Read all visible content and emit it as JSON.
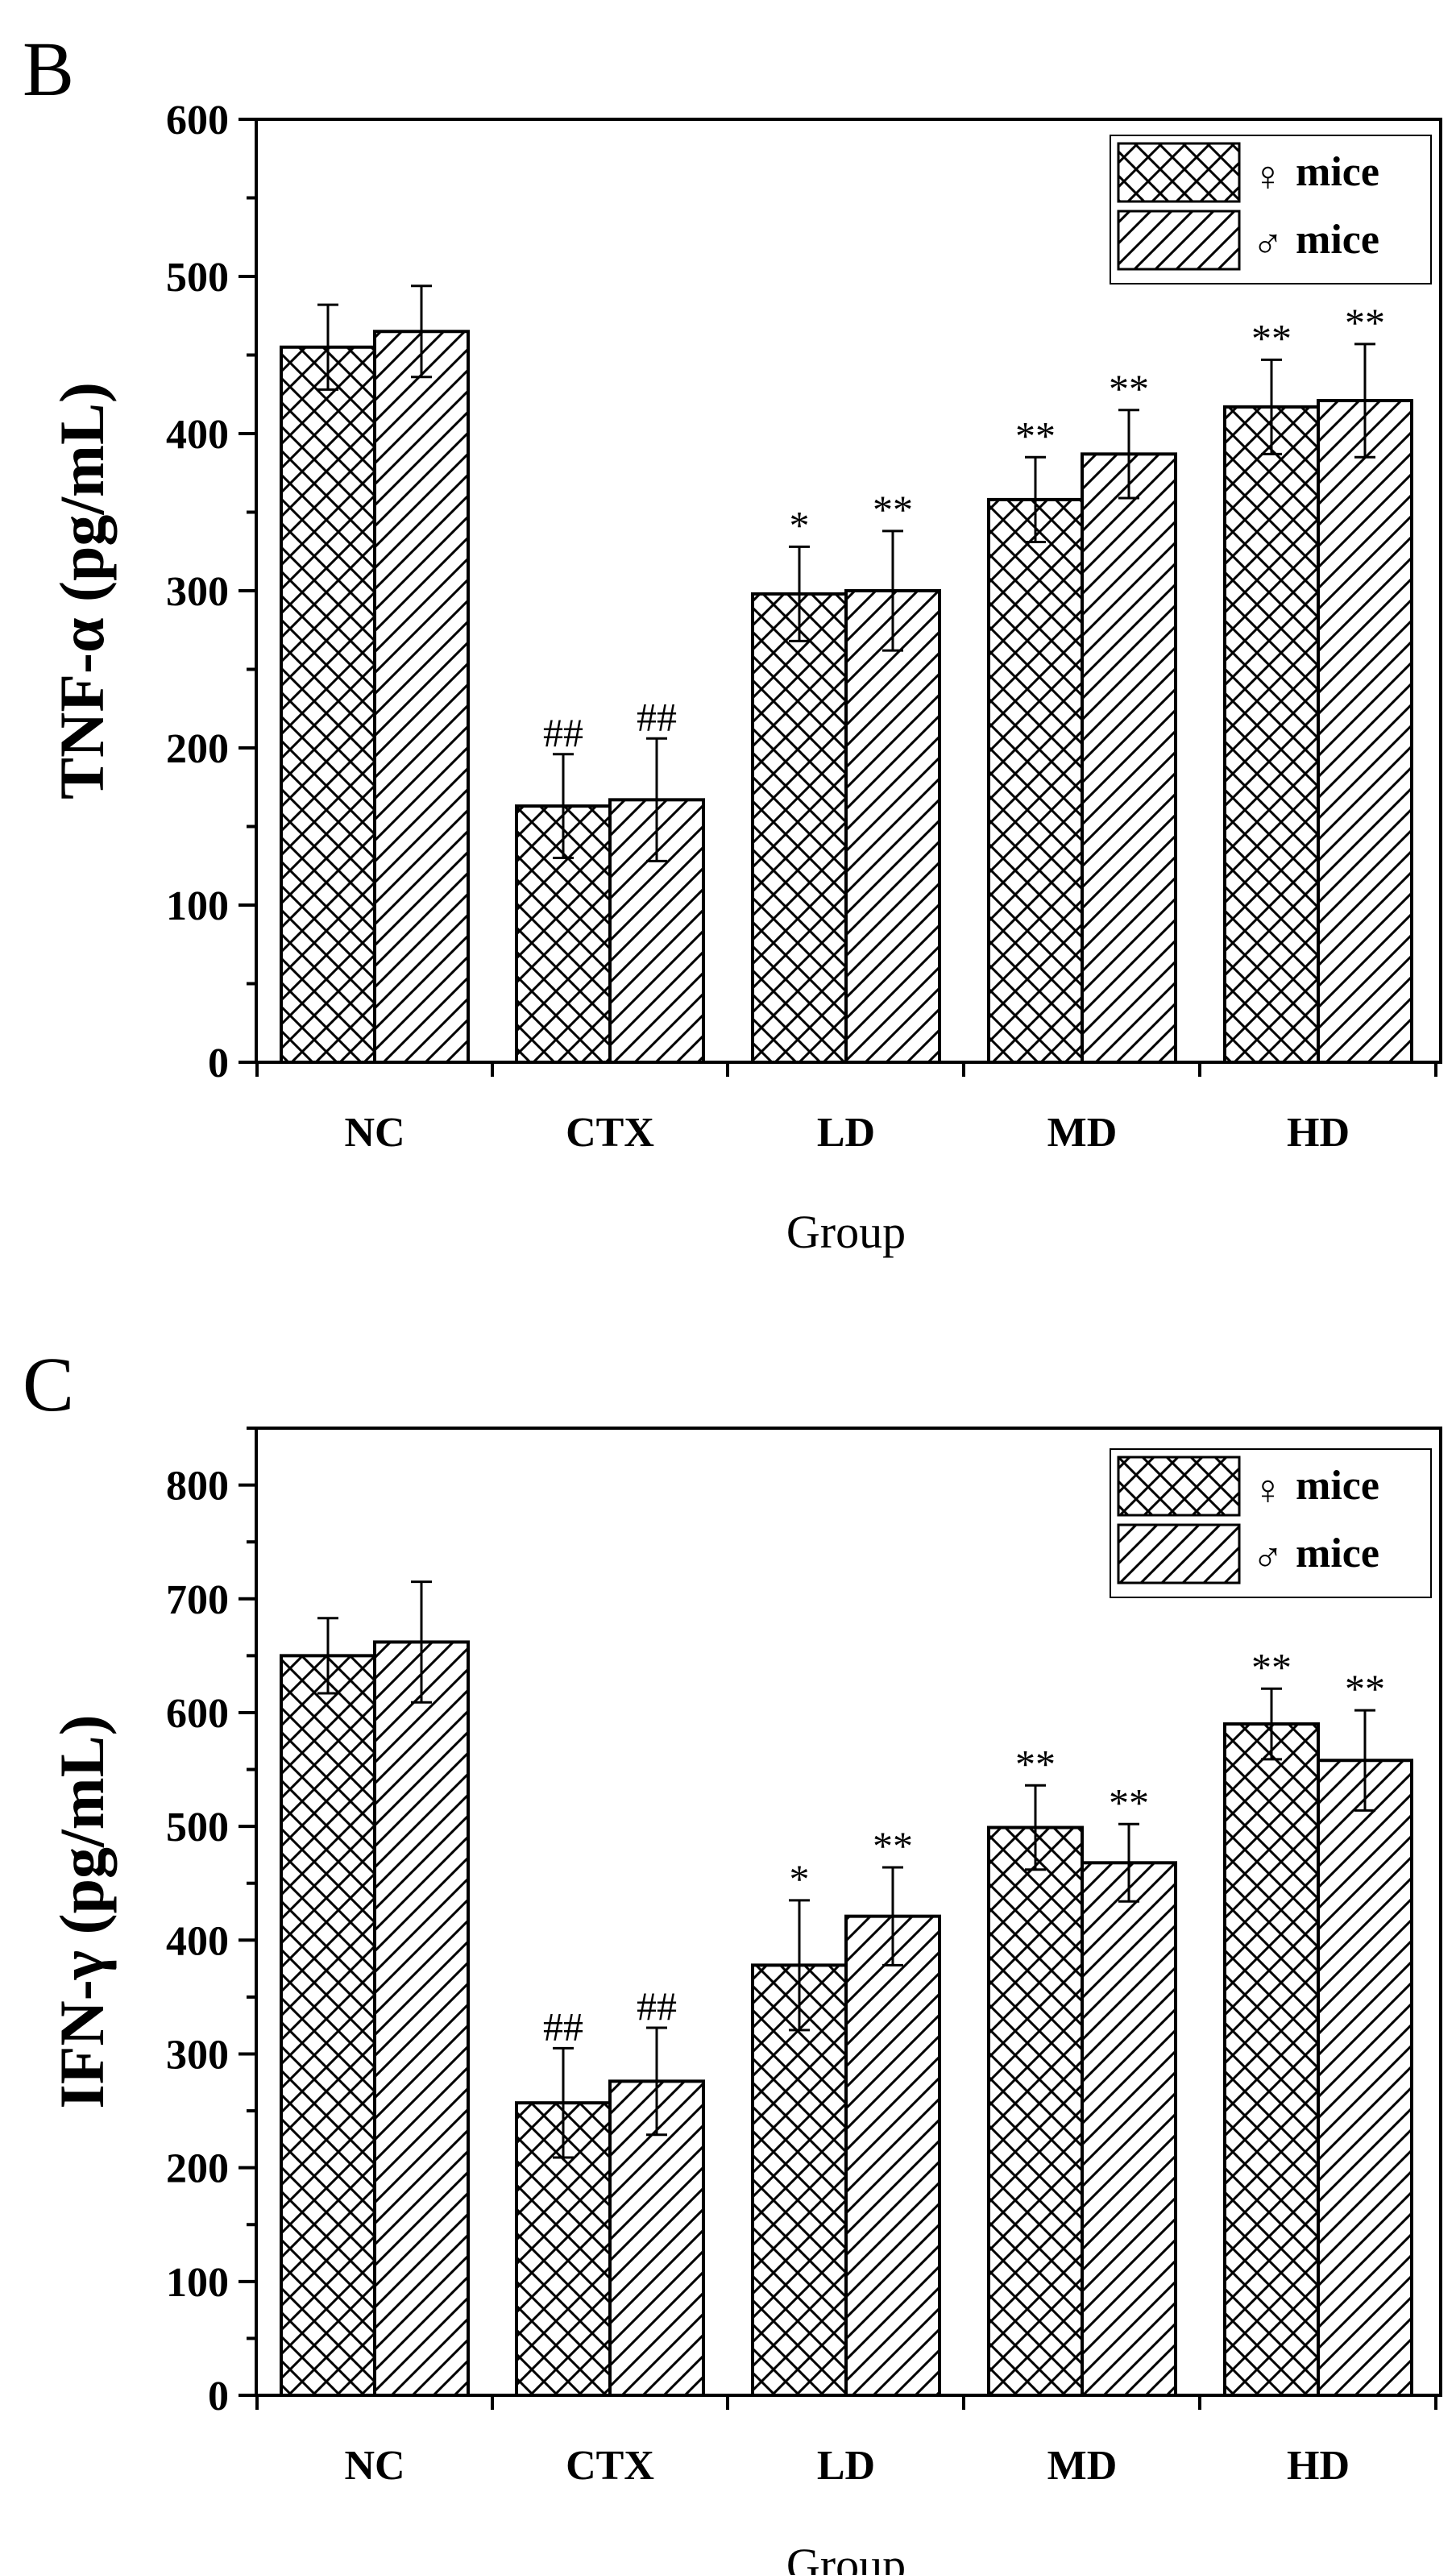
{
  "chart_data": [
    {
      "panel": "B",
      "type": "bar",
      "title": "",
      "xlabel": "Group",
      "ylabel": "TNF-α (pg/mL)",
      "ylim": [
        0,
        600
      ],
      "yticks": [
        "0",
        "100",
        "200",
        "300",
        "400",
        "500",
        "600"
      ],
      "categories": [
        "NC",
        "CTX",
        "LD",
        "MD",
        "HD"
      ],
      "legend_position": "top-right",
      "series": [
        {
          "name": "♀mice",
          "symbol": "♀",
          "label": "mice",
          "pattern": "crosshatch",
          "values": [
            455,
            163,
            298,
            358,
            417
          ],
          "errors": [
            27,
            33,
            30,
            27,
            30
          ],
          "annotations": [
            "",
            "##",
            "*",
            "**",
            "**"
          ]
        },
        {
          "name": "♂mice",
          "symbol": "♂",
          "label": "mice",
          "pattern": "diagonal",
          "values": [
            465,
            167,
            300,
            387,
            421
          ],
          "errors": [
            29,
            39,
            38,
            28,
            36
          ],
          "annotations": [
            "",
            "##",
            "**",
            "**",
            "**"
          ]
        }
      ]
    },
    {
      "panel": "C",
      "type": "bar",
      "title": "",
      "xlabel": "Group",
      "ylabel": "IFN-γ (pg/mL)",
      "ylim": [
        0,
        850
      ],
      "yticks": [
        "0",
        "100",
        "200",
        "300",
        "400",
        "500",
        "600",
        "700",
        "800"
      ],
      "categories": [
        "NC",
        "CTX",
        "LD",
        "MD",
        "HD"
      ],
      "legend_position": "top-right",
      "series": [
        {
          "name": "♀mice",
          "symbol": "♀",
          "label": "mice",
          "pattern": "crosshatch",
          "values": [
            650,
            257,
            378,
            499,
            590
          ],
          "errors": [
            33,
            48,
            57,
            37,
            31
          ],
          "annotations": [
            "",
            "##",
            "*",
            "**",
            "**"
          ]
        },
        {
          "name": "♂mice",
          "symbol": "♂",
          "label": "mice",
          "pattern": "diagonal",
          "values": [
            662,
            276,
            421,
            468,
            558
          ],
          "errors": [
            53,
            47,
            43,
            34,
            44
          ],
          "annotations": [
            "",
            "##",
            "**",
            "**",
            "**"
          ]
        }
      ]
    }
  ]
}
